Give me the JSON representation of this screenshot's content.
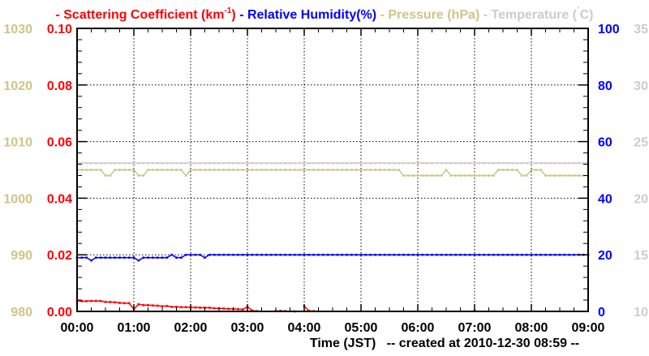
{
  "chart_data": {
    "type": "line",
    "title_parts": {
      "scatter": "- Scattering Coefficient (km",
      "scatter_sup": "-1",
      "scatter_end": ")",
      "humidity": "- Relative Humidity(%)",
      "pressure": "- Pressure (hPa)",
      "temperature": "- Temperature (",
      "temperature_deg": "°",
      "temperature_end": "C)"
    },
    "xlabel": "Time (JST)   -- created at 2010-12-30 08:59 --",
    "x_ticks": [
      "00:00",
      "01:00",
      "02:00",
      "03:00",
      "04:00",
      "05:00",
      "06:00",
      "07:00",
      "08:00",
      "09:00"
    ],
    "x_range_hours": [
      0,
      9
    ],
    "x_step_minutes": 5,
    "grid": true,
    "axes": {
      "scatter": {
        "side": "left-inner",
        "ylim": [
          0,
          0.1
        ],
        "ticks": [
          "0.00",
          "0.02",
          "0.04",
          "0.06",
          "0.08",
          "0.10"
        ]
      },
      "pressure": {
        "side": "left-outer",
        "ylim": [
          980,
          1030
        ],
        "ticks": [
          "980",
          "990",
          "1000",
          "1010",
          "1020",
          "1030"
        ]
      },
      "humidity": {
        "side": "right-inner",
        "ylim": [
          0,
          100
        ],
        "ticks": [
          "0",
          "20",
          "40",
          "60",
          "80",
          "100"
        ]
      },
      "temperature": {
        "side": "right-outer",
        "ylim": [
          10,
          35
        ],
        "ticks": [
          "10",
          "15",
          "20",
          "25",
          "30",
          "35"
        ]
      }
    },
    "colors": {
      "scatter": "#ff0000",
      "humidity": "#0000ff",
      "pressure": "#cdc587",
      "temperature": "#cccccc"
    },
    "series": [
      {
        "name": "Temperature",
        "axis": "temperature",
        "values": [
          23.1,
          23.1,
          23.1,
          23.1,
          23.1,
          23.1,
          23.1,
          23.1,
          23.1,
          23.1,
          23.1,
          23.1,
          23.1,
          23.1,
          23.1,
          23.1,
          23.1,
          23.1,
          23.1,
          23.1,
          23.1,
          23.1,
          23.1,
          23.1,
          23.1,
          23.1,
          23.1,
          23.1,
          23.1,
          23.1,
          23.1,
          23.1,
          23.1,
          23.1,
          23.1,
          23.1,
          23.1,
          23.1,
          23.1,
          23.1,
          23.1,
          23.1,
          23.1,
          23.1,
          23.1,
          23.1,
          23.1,
          23.1,
          23.1,
          23.1,
          23.1,
          23.1,
          23.1,
          23.1,
          23.1,
          23.1,
          23.1,
          23.1,
          23.1,
          23.1,
          23.1,
          23.1,
          23.1,
          23.1,
          23.1,
          23.1,
          23.1,
          23.1,
          23.1,
          23.1,
          23.1,
          23.1,
          23.1,
          23.1,
          23.1,
          23.1,
          23.1,
          23.1,
          23.1,
          23.1,
          23.1,
          23.1,
          23.1,
          23.1,
          23.1,
          23.1,
          23.1,
          23.1,
          23.1,
          23.1,
          23.1,
          23.1,
          23.1,
          23.1,
          23.1,
          23.1,
          23.1,
          23.1,
          23.1,
          23.1,
          23.1,
          23.1,
          23.1,
          23.1,
          23.1,
          23.1,
          23.1,
          23.1,
          23.1
        ]
      },
      {
        "name": "Pressure",
        "axis": "pressure",
        "values": [
          1005,
          1005,
          1005,
          1005,
          1005,
          1005,
          1004,
          1004,
          1005,
          1005,
          1005,
          1005,
          1005,
          1004,
          1004,
          1005,
          1005,
          1005,
          1005,
          1005,
          1005,
          1005,
          1005,
          1004,
          1005,
          1005,
          1005,
          1005,
          1005,
          1005,
          1005,
          1005,
          1005,
          1005,
          1005,
          1005,
          1005,
          1005,
          1005,
          1005,
          1005,
          1005,
          1005,
          1005,
          1005,
          1005,
          1005,
          1005,
          1005,
          1005,
          1005,
          1005,
          1005,
          1005,
          1005,
          1005,
          1005,
          1005,
          1005,
          1005,
          1005,
          1005,
          1005,
          1005,
          1005,
          1005,
          1005,
          1005,
          1005,
          1004,
          1004,
          1004,
          1004,
          1004,
          1004,
          1004,
          1004,
          1004,
          1005,
          1004,
          1004,
          1004,
          1004,
          1004,
          1004,
          1004,
          1004,
          1004,
          1004,
          1005,
          1005,
          1005,
          1005,
          1005,
          1004,
          1004,
          1005,
          1005,
          1005,
          1004,
          1004,
          1004,
          1004,
          1004,
          1004,
          1004,
          1004,
          1004,
          1004
        ]
      },
      {
        "name": "Relative Humidity",
        "axis": "humidity",
        "values": [
          19,
          19,
          19,
          18,
          19,
          19,
          19,
          19,
          19,
          19,
          19,
          19,
          19,
          18,
          19,
          19,
          19,
          19,
          19,
          19,
          20,
          19,
          19,
          20,
          20,
          20,
          20,
          19,
          20,
          20,
          20,
          20,
          20,
          20,
          20,
          20,
          20,
          20,
          20,
          20,
          20,
          20,
          20,
          20,
          20,
          20,
          20,
          20,
          20,
          20,
          20,
          20,
          20,
          20,
          20,
          20,
          20,
          20,
          20,
          20,
          20,
          20,
          20,
          20,
          20,
          20,
          20,
          20,
          20,
          20,
          20,
          20,
          20,
          20,
          20,
          20,
          20,
          20,
          20,
          20,
          20,
          20,
          20,
          20,
          20,
          20,
          20,
          20,
          20,
          20,
          20,
          20,
          20,
          20,
          20,
          20,
          20,
          20,
          20,
          20,
          20,
          20,
          20,
          20,
          20,
          20,
          20,
          20,
          20
        ]
      },
      {
        "name": "Scattering Coefficient",
        "axis": "scatter",
        "values": [
          0.0038,
          0.0036,
          0.0036,
          0.0037,
          0.0037,
          0.0037,
          0.0033,
          0.0033,
          0.0032,
          0.003,
          0.0029,
          0.0029,
          0.0008,
          0.0025,
          0.0022,
          0.0022,
          0.0021,
          0.002,
          0.0018,
          0.0019,
          0.0016,
          0.0016,
          0.0015,
          0.0015,
          0.0014,
          0.0014,
          0.0013,
          0.0013,
          0.0013,
          0.0011,
          0.0011,
          0.001,
          0.0009,
          0.0009,
          0.0008,
          0.0007,
          0.0016,
          0.0003,
          0.0001,
          null,
          null,
          null,
          0.0001,
          0.0002,
          0.0001,
          null,
          0.0,
          null,
          0.0018,
          0.0002,
          0.0001,
          null,
          null,
          null,
          null,
          null,
          null,
          null,
          null,
          null,
          null,
          null,
          null,
          null,
          null,
          null,
          null,
          null,
          null,
          null,
          null,
          null,
          null,
          null,
          null,
          null,
          null,
          null,
          null,
          null,
          null,
          null,
          null,
          null,
          0.0003,
          null,
          null,
          null,
          null,
          null,
          null,
          null,
          null,
          null,
          null,
          null,
          null,
          null,
          null,
          null,
          null,
          null,
          null,
          null,
          null,
          null,
          null,
          null,
          null
        ]
      }
    ]
  }
}
